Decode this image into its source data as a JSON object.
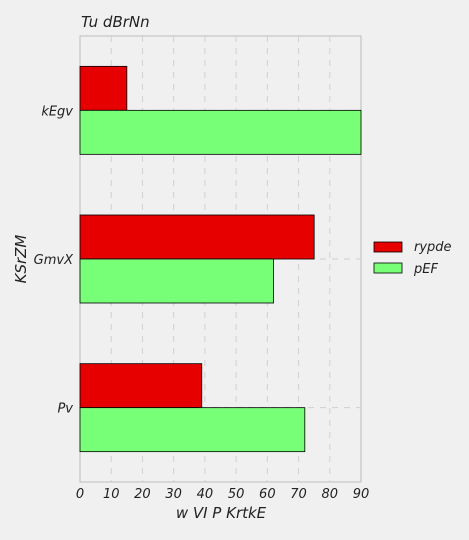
{
  "chart_data": {
    "type": "bar",
    "orientation": "horizontal",
    "title": "Tu  dBrNn",
    "xlabel": "w VI P KrtkE",
    "ylabel": "KSrZM",
    "categories": [
      "kEgv",
      "GmvX",
      "Pv"
    ],
    "series": [
      {
        "name": "rypde",
        "values": [
          15,
          75,
          39
        ],
        "color": "#e60000"
      },
      {
        "name": "pEF",
        "values": [
          90,
          62,
          72
        ],
        "color": "#77ff77"
      }
    ],
    "xlim": [
      0,
      90
    ],
    "xticks": [
      0,
      10,
      20,
      30,
      40,
      50,
      60,
      70,
      80,
      90
    ],
    "grid": true,
    "legend_position": "right"
  }
}
